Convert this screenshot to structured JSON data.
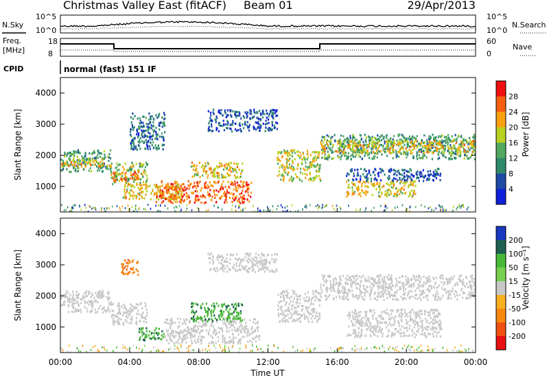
{
  "header": {
    "title": "Christmas Valley East (fitACF)",
    "beam": "Beam 01",
    "date": "29/Apr/2013"
  },
  "noise_panel": {
    "left_label": "N.Sky",
    "right_label": "N.Search",
    "left_ticks": [
      "10^5",
      "10^0"
    ],
    "right_ticks": [
      "10^5",
      "10^0"
    ]
  },
  "freq_panel": {
    "left_label_1": "Freq.",
    "left_label_2": "[MHz]",
    "right_label": "Nave",
    "left_ticks": [
      "18",
      "8"
    ],
    "right_ticks": [
      "60",
      "0"
    ]
  },
  "cpid": {
    "label": "CPID",
    "text": "normal (fast) 151 IF"
  },
  "colors": {
    "ground_scatter": "#b4b4b4",
    "power_scale": [
      "#1020d8",
      "#1e4aa8",
      "#2f8a6a",
      "#52a860",
      "#b8d020",
      "#f8a010",
      "#f86010",
      "#f01010"
    ],
    "velocity_scale": [
      "#1838c0",
      "#1f6050",
      "#48b838",
      "#78d050",
      "#c8c8c8",
      "#f8b020",
      "#f88810",
      "#f05010",
      "#e81010"
    ]
  },
  "chart_data": [
    {
      "type": "heatmap",
      "name": "power",
      "ylabel": "Slant Range [km]",
      "colorbar_label": "Power [dB]",
      "colorbar_ticks": [
        "4",
        "8",
        "12",
        "16",
        "20",
        "24",
        "28"
      ],
      "y_ticks": [
        "1000",
        "2000",
        "3000",
        "4000"
      ],
      "ylim": [
        180,
        4500
      ],
      "xlim": [
        0,
        24
      ],
      "regions": [
        {
          "t": [
            0.0,
            2.9
          ],
          "r": [
            1500,
            2200
          ],
          "level": 12
        },
        {
          "t": [
            0.0,
            2.9
          ],
          "r": [
            1650,
            1900
          ],
          "level": 20
        },
        {
          "t": [
            2.9,
            5.0
          ],
          "r": [
            1100,
            1800
          ],
          "level": 16
        },
        {
          "t": [
            2.9,
            4.5
          ],
          "r": [
            1200,
            1500
          ],
          "level": 24
        },
        {
          "t": [
            4.0,
            6.0
          ],
          "r": [
            2200,
            3400
          ],
          "level": 8
        },
        {
          "t": [
            3.5,
            7.0
          ],
          "r": [
            600,
            1100
          ],
          "level": 20
        },
        {
          "t": [
            5.5,
            11.0
          ],
          "r": [
            500,
            1200
          ],
          "level": 26
        },
        {
          "t": [
            7.5,
            10.5
          ],
          "r": [
            1300,
            1800
          ],
          "level": 20
        },
        {
          "t": [
            8.5,
            12.5
          ],
          "r": [
            2800,
            3500
          ],
          "level": 6
        },
        {
          "t": [
            12.5,
            15.0
          ],
          "r": [
            1200,
            2200
          ],
          "level": 18
        },
        {
          "t": [
            15.0,
            24.0
          ],
          "r": [
            1900,
            2700
          ],
          "level": 12
        },
        {
          "t": [
            15.0,
            24.0
          ],
          "r": [
            2100,
            2500
          ],
          "level": 20
        },
        {
          "t": [
            16.5,
            20.5
          ],
          "r": [
            700,
            1200
          ],
          "level": 20
        },
        {
          "t": [
            16.5,
            22.0
          ],
          "r": [
            1200,
            1600
          ],
          "level": 6
        }
      ]
    },
    {
      "type": "heatmap",
      "name": "velocity",
      "ylabel": "Slant Range [km]",
      "xlabel": "Time UT",
      "colorbar_label": "Velocity [m s⁻¹]",
      "colorbar_ticks": [
        "200",
        "100",
        "50",
        "15",
        "-15",
        "-50",
        "-100",
        "-200"
      ],
      "y_ticks": [
        "1000",
        "2000",
        "3000",
        "4000"
      ],
      "x_ticks": [
        "00:00",
        "04:00",
        "08:00",
        "12:00",
        "16:00",
        "20:00",
        "00:00"
      ],
      "ylim": [
        180,
        4500
      ],
      "xlim": [
        0,
        24
      ],
      "regions": [
        {
          "t": [
            0.0,
            2.9
          ],
          "r": [
            1500,
            2200
          ],
          "vel": 0
        },
        {
          "t": [
            2.9,
            5.0
          ],
          "r": [
            1100,
            1800
          ],
          "vel": 0
        },
        {
          "t": [
            4.5,
            6.0
          ],
          "r": [
            600,
            1000
          ],
          "vel": 60
        },
        {
          "t": [
            6.0,
            11.5
          ],
          "r": [
            500,
            1300
          ],
          "vel": 0
        },
        {
          "t": [
            7.5,
            10.5
          ],
          "r": [
            1200,
            1800
          ],
          "vel": 60
        },
        {
          "t": [
            8.5,
            12.5
          ],
          "r": [
            2800,
            3400
          ],
          "vel": 0
        },
        {
          "t": [
            12.5,
            15.0
          ],
          "r": [
            1200,
            2200
          ],
          "vel": 0
        },
        {
          "t": [
            15.0,
            24.0
          ],
          "r": [
            1900,
            2700
          ],
          "vel": 0
        },
        {
          "t": [
            16.5,
            22.0
          ],
          "r": [
            700,
            1600
          ],
          "vel": 0
        },
        {
          "t": [
            3.5,
            4.5
          ],
          "r": [
            2700,
            3200
          ],
          "vel": -80
        }
      ]
    }
  ]
}
